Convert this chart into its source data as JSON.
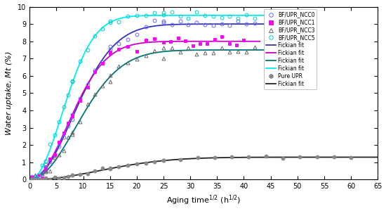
{
  "xlabel": "Aging time¹/² (h¹/²)",
  "ylabel": "Water uptake, Mt (%)",
  "xlim": [
    0,
    65
  ],
  "ylim": [
    0,
    10
  ],
  "xticks": [
    0,
    5,
    10,
    15,
    20,
    25,
    30,
    35,
    40,
    45,
    50,
    55,
    60,
    65
  ],
  "yticks": [
    0,
    1,
    2,
    3,
    4,
    5,
    6,
    7,
    8,
    9,
    10
  ],
  "series": {
    "NCC0": {
      "color": "#6666ff",
      "marker": "o",
      "markerfacecolor": "none",
      "markersize": 3.5,
      "Mm": 9.0,
      "k": 0.008,
      "t_max": 42,
      "noise": 0.13,
      "seed": 10,
      "label": "BF/UPR_NCC0",
      "fit_color": "#3333bb"
    },
    "NCC1": {
      "color": "#ff00ff",
      "marker": "s",
      "markerfacecolor": "#ff00ff",
      "markersize": 3.5,
      "Mm": 8.0,
      "k": 0.01,
      "t_max": 40,
      "noise": 0.13,
      "seed": 20,
      "label": "BF/UPR_NCC1",
      "fit_color": "#cc00cc"
    },
    "NCC3": {
      "color": "#666666",
      "marker": "^",
      "markerfacecolor": "none",
      "markersize": 3.5,
      "Mm": 7.5,
      "k": 0.007,
      "t_max": 42,
      "noise": 0.13,
      "seed": 30,
      "label": "BF/UPR_NCC3",
      "fit_color": "#007777"
    },
    "NCC5": {
      "color": "#00cccc",
      "marker": "o",
      "markerfacecolor": "none",
      "markersize": 3.5,
      "Mm": 9.5,
      "k": 0.014,
      "t_max": 42,
      "noise": 0.13,
      "seed": 40,
      "label": "BF/UPR_NCC5",
      "fit_color": "#00eeee"
    },
    "UPR": {
      "color": "#888888",
      "marker": "o",
      "markerfacecolor": "#888888",
      "markersize": 3.5,
      "Mm": 1.3,
      "k": 0.003,
      "t_max": 60,
      "noise": 0.035,
      "seed": 50,
      "label": "Pure UPR",
      "fit_color": "#222222"
    }
  },
  "figsize": [
    5.5,
    3.0
  ],
  "dpi": 100
}
